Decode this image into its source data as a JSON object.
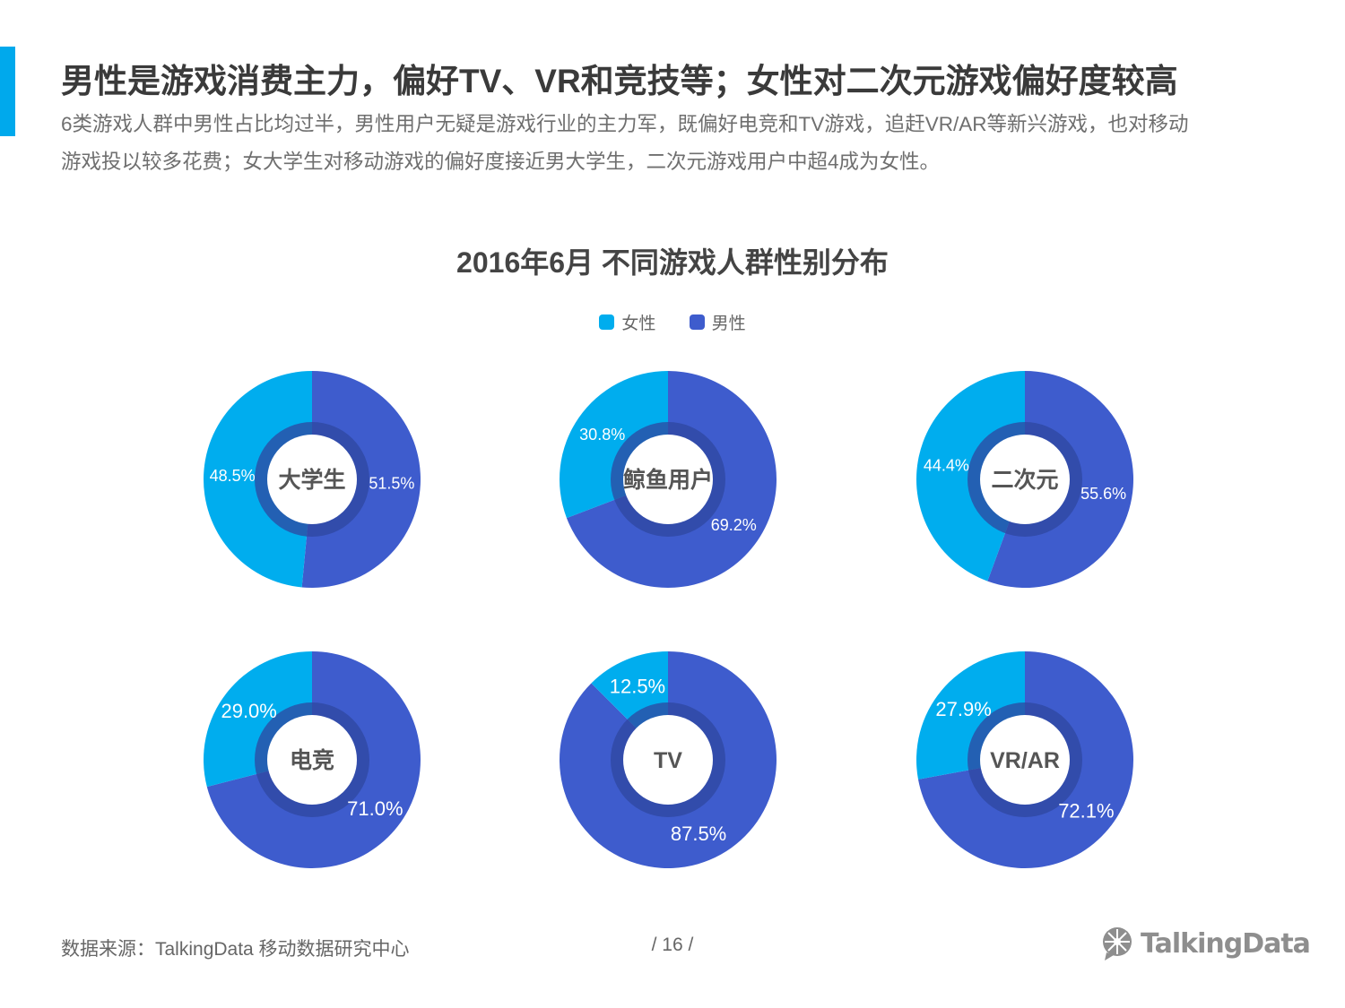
{
  "headline": "男性是游戏消费主力，偏好TV、VR和竞技等；女性对二次元游戏偏好度较高",
  "description": "6类游戏人群中男性占比均过半，男性用户无疑是游戏行业的主力军，既偏好电竞和TV游戏，追赶VR/AR等新兴游戏，也对移动游戏投以较多花费；女大学生对移动游戏的偏好度接近男大学生，二次元游戏用户中超4成为女性。",
  "footer": {
    "source": "数据来源：TalkingData 移动数据研究中心",
    "page": "/ 16 /",
    "logo": "TalkingData"
  },
  "colors": {
    "female": "#00adee",
    "male": "#3e5ccd",
    "ring": "#2f479f",
    "headline": "#3a3a3a",
    "accent": "#00a9ec"
  },
  "chart_data": {
    "type": "pie",
    "title": "2016年6月 不同游戏人群性别分布",
    "legend": [
      "女性",
      "男性"
    ],
    "legend_position": "top-center",
    "charts": [
      {
        "name": "大学生",
        "female": 48.5,
        "male": 51.5,
        "female_label": "48.5%",
        "male_label": "51.5%"
      },
      {
        "name": "鲸鱼用户",
        "female": 30.8,
        "male": 69.2,
        "female_label": "30.8%",
        "male_label": "69.2%"
      },
      {
        "name": "二次元",
        "female": 44.4,
        "male": 55.6,
        "female_label": "44.4%",
        "male_label": "55.6%"
      },
      {
        "name": "电竞",
        "female": 29.0,
        "male": 71.0,
        "female_label": "29.0%",
        "male_label": "71.0%"
      },
      {
        "name": "TV",
        "female": 12.5,
        "male": 87.5,
        "female_label": "12.5%",
        "male_label": "87.5%"
      },
      {
        "name": "VR/AR",
        "female": 27.9,
        "male": 72.1,
        "female_label": "27.9%",
        "male_label": "72.1%"
      }
    ]
  }
}
